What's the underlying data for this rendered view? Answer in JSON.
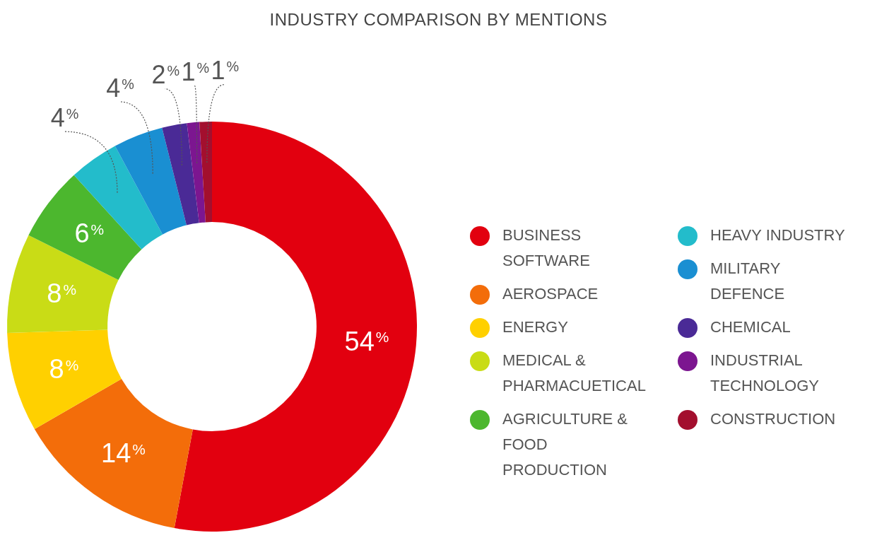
{
  "chart_data": {
    "type": "donut",
    "title": "INDUSTRY COMPARISON BY MENTIONS",
    "categories": [
      "BUSINESS SOFTWARE",
      "AEROSPACE",
      "ENERGY",
      "MEDICAL & PHARMACUETICAL",
      "AGRICULTURE & FOOD PRODUCTION",
      "HEAVY INDUSTRY",
      "MILITARY DEFENCE",
      "CHEMICAL",
      "INDUSTRIAL TECHNOLOGY",
      "CONSTRUCTION"
    ],
    "values": [
      54,
      14,
      8,
      8,
      6,
      4,
      4,
      2,
      1,
      1
    ],
    "value_labels": [
      "54%",
      "14%",
      "8%",
      "8%",
      "6%",
      "4%",
      "4%",
      "2%",
      "1%",
      "1%"
    ],
    "colors": [
      "#e2000f",
      "#f36d0a",
      "#ffd000",
      "#c9dc16",
      "#4cb72e",
      "#23bccb",
      "#1a8fd2",
      "#4a2a96",
      "#7c1690",
      "#a30f2e"
    ],
    "legend": "right"
  }
}
